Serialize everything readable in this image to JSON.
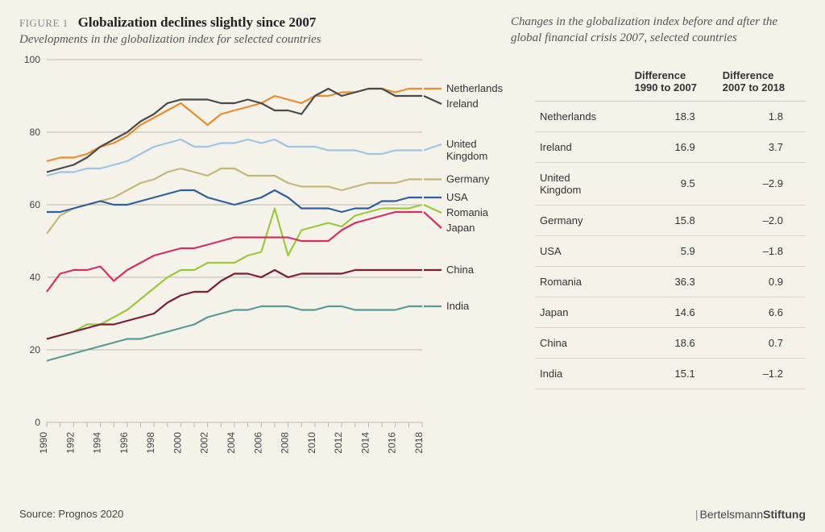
{
  "figure_label": "FIGURE 1",
  "title": "Globalization declines slightly since 2007",
  "subtitle": "Developments in the globalization index for selected countries",
  "right_title": "Changes in the globalization index before and after the global financial crisis 2007, selected countries",
  "source": "Source: Prognos 2020",
  "brand_part1": "Bertelsmann",
  "brand_part2": "Stiftung",
  "chart": {
    "type": "line",
    "background_color": "#f5f2ea",
    "grid_color": "#bdb8aa",
    "ylim": [
      0,
      100
    ],
    "ytick_step": 20,
    "yticks": [
      0,
      20,
      40,
      60,
      80,
      100
    ],
    "xlim": [
      1990,
      2018
    ],
    "xticks": [
      1990,
      1991,
      1992,
      1993,
      1994,
      1995,
      1996,
      1997,
      1998,
      1999,
      2000,
      2001,
      2002,
      2003,
      2004,
      2005,
      2006,
      2007,
      2008,
      2009,
      2010,
      2011,
      2012,
      2013,
      2014,
      2015,
      2016,
      2017,
      2018
    ],
    "xtick_labels": [
      1990,
      1992,
      1994,
      1996,
      1998,
      2000,
      2002,
      2004,
      2006,
      2008,
      2010,
      2012,
      2014,
      2016,
      2018
    ],
    "line_width": 2.2,
    "label_fontsize": 13,
    "axis_fontsize": 12,
    "years": [
      1990,
      1991,
      1992,
      1993,
      1994,
      1995,
      1996,
      1997,
      1998,
      1999,
      2000,
      2001,
      2002,
      2003,
      2004,
      2005,
      2006,
      2007,
      2008,
      2009,
      2010,
      2011,
      2012,
      2013,
      2014,
      2015,
      2016,
      2017,
      2018
    ],
    "series": [
      {
        "name": "Netherlands",
        "color": "#e88d2e",
        "values": [
          72,
          73,
          73,
          74,
          76,
          77,
          79,
          82,
          84,
          86,
          88,
          85,
          82,
          85,
          86,
          87,
          88,
          90,
          89,
          88,
          90,
          90,
          91,
          91,
          92,
          92,
          91,
          92,
          92
        ]
      },
      {
        "name": "Ireland",
        "color": "#4a4a4a",
        "values": [
          69,
          70,
          71,
          73,
          76,
          78,
          80,
          83,
          85,
          88,
          89,
          89,
          89,
          88,
          88,
          89,
          88,
          86,
          86,
          85,
          90,
          92,
          90,
          91,
          92,
          92,
          90,
          90,
          90
        ]
      },
      {
        "name": "United Kingdom",
        "color": "#9ec4e6",
        "label_lines": [
          "United",
          "Kingdom"
        ],
        "values": [
          68,
          69,
          69,
          70,
          70,
          71,
          72,
          74,
          76,
          77,
          78,
          76,
          76,
          77,
          77,
          78,
          77,
          78,
          76,
          76,
          76,
          75,
          75,
          75,
          74,
          74,
          75,
          75,
          75
        ]
      },
      {
        "name": "Germany",
        "color": "#c2b87a",
        "values": [
          52,
          57,
          59,
          60,
          61,
          62,
          64,
          66,
          67,
          69,
          70,
          69,
          68,
          70,
          70,
          68,
          68,
          68,
          66,
          65,
          65,
          65,
          64,
          65,
          66,
          66,
          66,
          67,
          67
        ]
      },
      {
        "name": "USA",
        "color": "#2e5fa3",
        "values": [
          58,
          58,
          59,
          60,
          61,
          60,
          60,
          61,
          62,
          63,
          64,
          64,
          62,
          61,
          60,
          61,
          62,
          64,
          62,
          59,
          59,
          59,
          58,
          59,
          59,
          61,
          61,
          62,
          62
        ]
      },
      {
        "name": "Romania",
        "color": "#9cc93c",
        "values": [
          23,
          24,
          25,
          27,
          27,
          29,
          31,
          34,
          37,
          40,
          42,
          42,
          44,
          44,
          44,
          46,
          47,
          59,
          46,
          53,
          54,
          55,
          54,
          57,
          58,
          59,
          59,
          59,
          60
        ]
      },
      {
        "name": "Japan",
        "color": "#d62e66",
        "values": [
          36,
          41,
          42,
          42,
          43,
          39,
          42,
          44,
          46,
          47,
          48,
          48,
          49,
          50,
          51,
          51,
          51,
          51,
          51,
          50,
          50,
          50,
          53,
          55,
          56,
          57,
          58,
          58,
          58
        ]
      },
      {
        "name": "China",
        "color": "#7a1f2f",
        "values": [
          23,
          24,
          25,
          26,
          27,
          27,
          28,
          29,
          30,
          33,
          35,
          36,
          36,
          39,
          41,
          41,
          40,
          42,
          40,
          41,
          41,
          41,
          41,
          42,
          42,
          42,
          42,
          42,
          42
        ]
      },
      {
        "name": "India",
        "color": "#5a9a96",
        "values": [
          17,
          18,
          19,
          20,
          21,
          22,
          23,
          23,
          24,
          25,
          26,
          27,
          29,
          30,
          31,
          31,
          32,
          32,
          32,
          31,
          31,
          32,
          32,
          31,
          31,
          31,
          31,
          32,
          32
        ]
      }
    ]
  },
  "table": {
    "columns": [
      "",
      "Difference 1990 to 2007",
      "Difference 2007 to 2018"
    ],
    "col_headers": {
      "c0": "",
      "c1a": "Difference",
      "c1b": "1990 to 2007",
      "c2a": "Difference",
      "c2b": "2007 to 2018"
    },
    "rows": [
      {
        "name": "Netherlands",
        "d1": "18.3",
        "d2": "1.8"
      },
      {
        "name": "Ireland",
        "d1": "16.9",
        "d2": "3.7"
      },
      {
        "name": "United Kingdom",
        "d1": "9.5",
        "d2": "–2.9"
      },
      {
        "name": "Germany",
        "d1": "15.8",
        "d2": "–2.0"
      },
      {
        "name": "USA",
        "d1": "5.9",
        "d2": "–1.8"
      },
      {
        "name": "Romania",
        "d1": "36.3",
        "d2": "0.9"
      },
      {
        "name": "Japan",
        "d1": "14.6",
        "d2": "6.6"
      },
      {
        "name": "China",
        "d1": "18.6",
        "d2": "0.7"
      },
      {
        "name": "India",
        "d1": "15.1",
        "d2": "–1.2"
      }
    ]
  }
}
